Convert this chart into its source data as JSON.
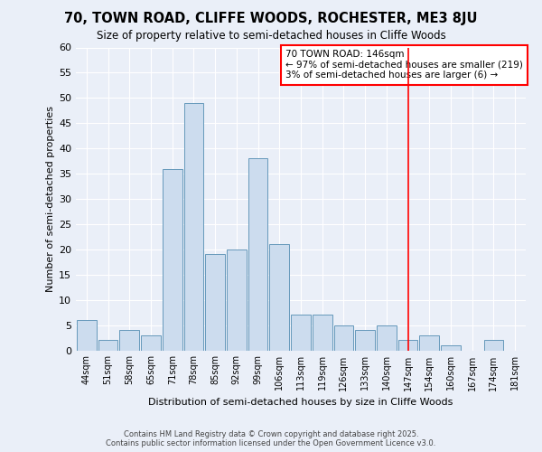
{
  "title": "70, TOWN ROAD, CLIFFE WOODS, ROCHESTER, ME3 8JU",
  "subtitle": "Size of property relative to semi-detached houses in Cliffe Woods",
  "xlabel": "Distribution of semi-detached houses by size in Cliffe Woods",
  "ylabel": "Number of semi-detached properties",
  "bins": [
    "44sqm",
    "51sqm",
    "58sqm",
    "65sqm",
    "71sqm",
    "78sqm",
    "85sqm",
    "92sqm",
    "99sqm",
    "106sqm",
    "113sqm",
    "119sqm",
    "126sqm",
    "133sqm",
    "140sqm",
    "147sqm",
    "154sqm",
    "160sqm",
    "167sqm",
    "174sqm",
    "181sqm"
  ],
  "values": [
    6,
    2,
    4,
    3,
    36,
    49,
    19,
    20,
    38,
    21,
    7,
    7,
    5,
    4,
    5,
    2,
    3,
    1,
    0,
    2,
    0
  ],
  "bar_color": "#ccdcee",
  "bar_edge_color": "#6699bb",
  "ref_line_index": 15,
  "annotation_text": "70 TOWN ROAD: 146sqm\n← 97% of semi-detached houses are smaller (219)\n3% of semi-detached houses are larger (6) →",
  "ylim": [
    0,
    60
  ],
  "yticks": [
    0,
    5,
    10,
    15,
    20,
    25,
    30,
    35,
    40,
    45,
    50,
    55,
    60
  ],
  "background_color": "#eaeff8",
  "grid_color": "#ffffff",
  "footer_line1": "Contains HM Land Registry data © Crown copyright and database right 2025.",
  "footer_line2": "Contains public sector information licensed under the Open Government Licence v3.0."
}
